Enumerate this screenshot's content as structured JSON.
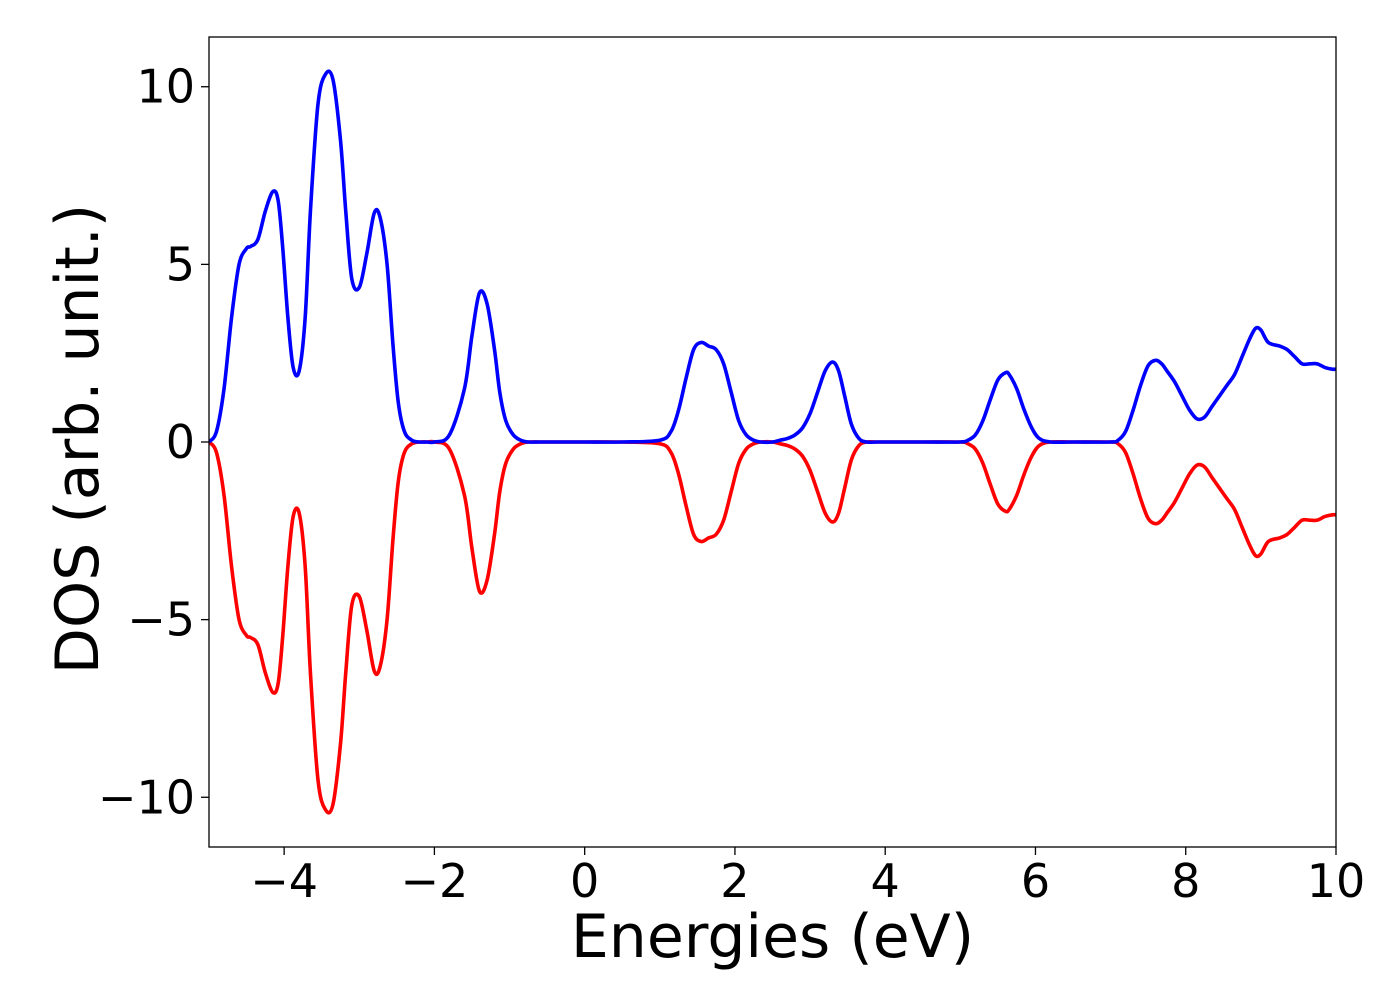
{
  "chart_data": {
    "type": "line",
    "title": "",
    "xlabel": "Energies (eV)",
    "ylabel": "DOS (arb. unit.)",
    "xlim": [
      -5,
      10
    ],
    "ylim": [
      -11.4,
      11.4
    ],
    "xticks": [
      -4,
      -2,
      0,
      2,
      4,
      6,
      8,
      10
    ],
    "xtick_labels": [
      "−4",
      "−2",
      "0",
      "2",
      "4",
      "6",
      "8",
      "10"
    ],
    "yticks": [
      -10,
      -5,
      0,
      5,
      10
    ],
    "ytick_labels": [
      "−10",
      "−5",
      "0",
      "5",
      "10"
    ],
    "grid": false,
    "legend": "none",
    "series": [
      {
        "color": "#0000ff",
        "x": [
          -5.0,
          -4.9,
          -4.8,
          -4.7,
          -4.6,
          -4.5,
          -4.45,
          -4.35,
          -4.25,
          -4.15,
          -4.08,
          -4.02,
          -3.95,
          -3.88,
          -3.8,
          -3.72,
          -3.65,
          -3.55,
          -3.45,
          -3.35,
          -3.25,
          -3.18,
          -3.1,
          -3.0,
          -2.9,
          -2.8,
          -2.72,
          -2.63,
          -2.55,
          -2.48,
          -2.4,
          -2.3,
          -2.2,
          -2.1,
          -2.0,
          -1.8,
          -1.6,
          -1.5,
          -1.4,
          -1.3,
          -1.2,
          -1.13,
          -1.05,
          -0.95,
          -0.85,
          -0.75,
          -0.6,
          -0.4,
          0.0,
          0.5,
          1.0,
          1.15,
          1.25,
          1.35,
          1.45,
          1.55,
          1.65,
          1.75,
          1.85,
          1.95,
          2.05,
          2.15,
          2.25,
          2.35,
          2.5,
          2.6,
          2.7,
          2.8,
          2.9,
          3.0,
          3.1,
          3.2,
          3.3,
          3.38,
          3.46,
          3.55,
          3.65,
          3.75,
          3.9,
          4.0,
          4.5,
          5.0,
          5.1,
          5.2,
          5.3,
          5.4,
          5.5,
          5.6,
          5.65,
          5.75,
          5.85,
          5.95,
          6.05,
          6.2,
          6.5,
          7.0,
          7.1,
          7.2,
          7.3,
          7.4,
          7.5,
          7.6,
          7.68,
          7.75,
          7.85,
          7.95,
          8.05,
          8.15,
          8.25,
          8.35,
          8.45,
          8.55,
          8.65,
          8.75,
          8.85,
          8.93,
          9.0,
          9.1,
          9.25,
          9.35,
          9.45,
          9.55,
          9.65,
          9.75,
          9.85,
          9.95,
          10.0
        ],
        "y": [
          0.0,
          0.3,
          1.5,
          3.5,
          5.0,
          5.45,
          5.5,
          5.7,
          6.5,
          7.05,
          6.8,
          5.5,
          3.5,
          2.1,
          2.0,
          3.5,
          6.5,
          9.5,
          10.35,
          10.2,
          8.5,
          6.5,
          4.6,
          4.35,
          5.3,
          6.45,
          6.3,
          5.0,
          2.7,
          1.1,
          0.3,
          0.05,
          0.0,
          0.0,
          0.0,
          0.2,
          1.5,
          3.0,
          4.2,
          3.9,
          2.6,
          1.4,
          0.6,
          0.2,
          0.05,
          0.0,
          0.0,
          0.0,
          0.0,
          0.0,
          0.05,
          0.3,
          0.9,
          1.8,
          2.6,
          2.8,
          2.7,
          2.6,
          2.2,
          1.4,
          0.6,
          0.2,
          0.05,
          0.0,
          0.0,
          0.05,
          0.1,
          0.2,
          0.4,
          0.8,
          1.4,
          2.0,
          2.25,
          2.0,
          1.3,
          0.5,
          0.1,
          0.0,
          0.0,
          0.0,
          0.0,
          0.0,
          0.05,
          0.2,
          0.6,
          1.2,
          1.75,
          1.95,
          1.9,
          1.5,
          0.9,
          0.4,
          0.1,
          0.0,
          0.0,
          0.0,
          0.05,
          0.3,
          0.9,
          1.6,
          2.15,
          2.3,
          2.2,
          2.0,
          1.7,
          1.3,
          0.9,
          0.65,
          0.7,
          1.0,
          1.3,
          1.6,
          1.9,
          2.4,
          2.9,
          3.2,
          3.15,
          2.8,
          2.7,
          2.6,
          2.4,
          2.2,
          2.2,
          2.2,
          2.1,
          2.05,
          2.05
        ]
      },
      {
        "color": "#ff0000",
        "mirror_of_series": 0
      }
    ]
  }
}
